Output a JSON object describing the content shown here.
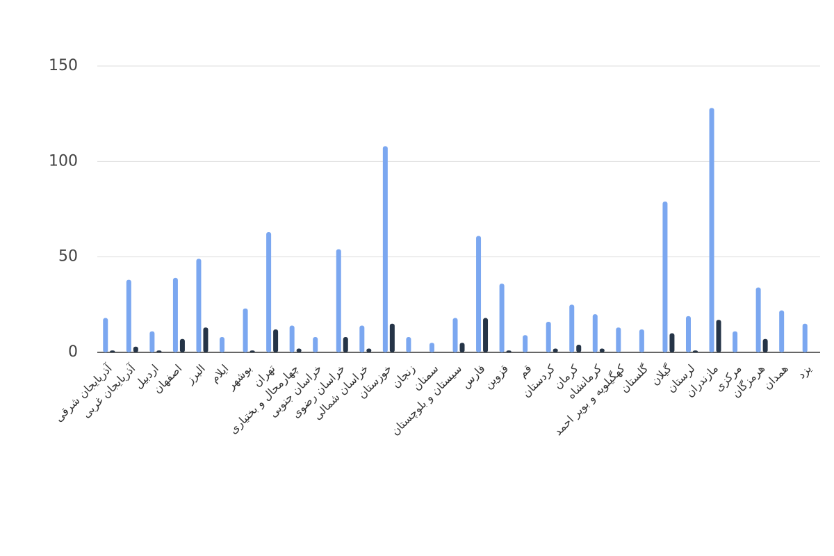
{
  "chart_data": {
    "type": "bar",
    "categories": [
      "آذربایجان شرقی",
      "آذربایجان غربی",
      "اردبیل",
      "اصفهان",
      "البرز",
      "ایلام",
      "بوشهر",
      "تهران",
      "چهارمحال و بختیاری",
      "خراسان جنوبی",
      "خراسان رضوی",
      "خراسان شمالی",
      "خوزستان",
      "زنجان",
      "سمنان",
      "سیستان و بلوچستان",
      "فارس",
      "قزوین",
      "قم",
      "کردستان",
      "کرمان",
      "کرمانشاه",
      "کهگیلویه و بویر احمد",
      "گلستان",
      "گیلان",
      "لرستان",
      "مازندران",
      "مرکزی",
      "هرمزگان",
      "همدان",
      "یزد"
    ],
    "series": [
      {
        "color": "#7ba7f0",
        "values": [
          18,
          38,
          11,
          39,
          49,
          8,
          23,
          63,
          14,
          8,
          54,
          14,
          108,
          8,
          5,
          18,
          61,
          36,
          9,
          16,
          25,
          20,
          13,
          12,
          79,
          19,
          128,
          11,
          34,
          22,
          15
        ]
      },
      {
        "color": "#253447",
        "values": [
          1,
          3,
          1,
          7,
          13,
          0,
          1,
          12,
          2,
          0,
          8,
          2,
          15,
          0,
          0,
          5,
          18,
          1,
          0,
          2,
          4,
          2,
          0,
          0,
          10,
          1,
          17,
          0,
          7,
          0,
          0
        ]
      }
    ],
    "ylim": [
      0,
      150
    ],
    "yticks": [
      0,
      50,
      100,
      150
    ],
    "grid": true
  }
}
